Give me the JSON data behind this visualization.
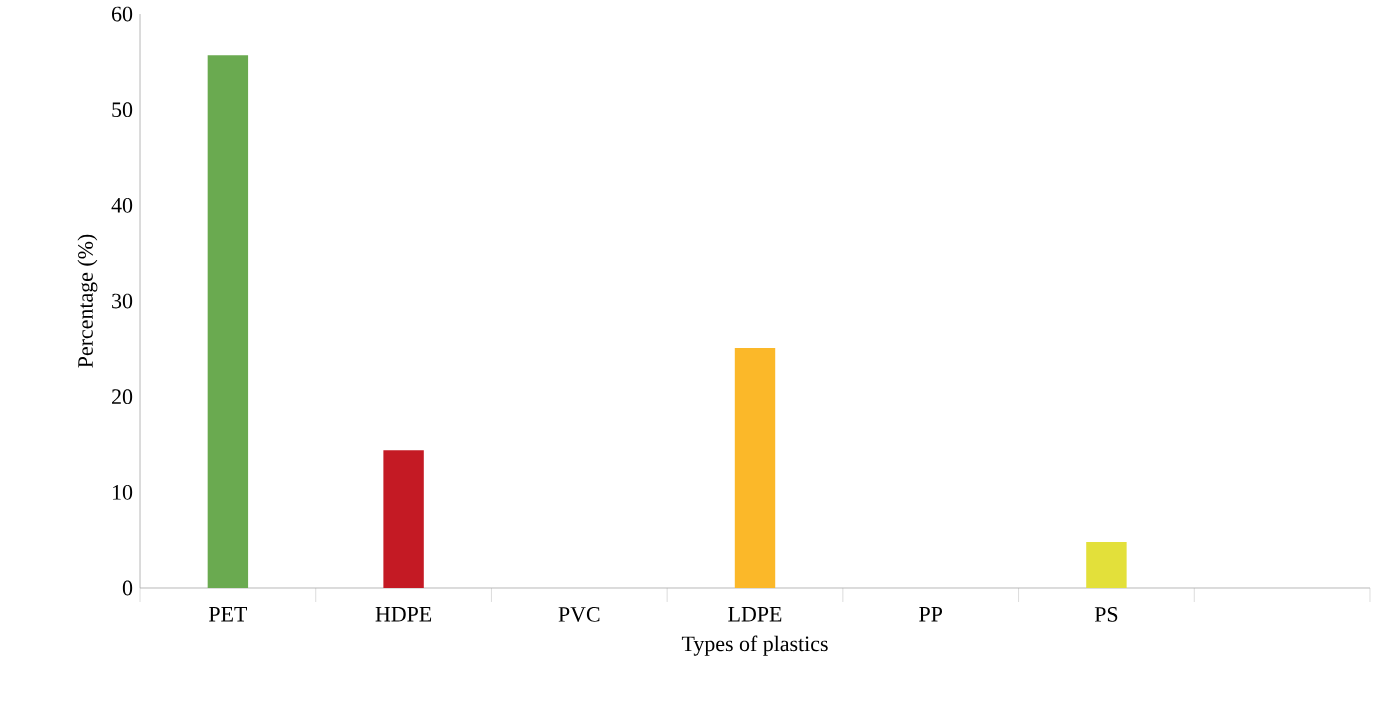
{
  "chart_data": {
    "type": "bar",
    "xlabel": "Types of plastics",
    "ylabel": "Percentage (%)",
    "categories": [
      "PET",
      "HDPE",
      "PVC",
      "LDPE",
      "PP",
      "PS",
      null
    ],
    "values": [
      55.7,
      14.4,
      0,
      25.1,
      0,
      4.8,
      null
    ],
    "colors": [
      "#6aaa50",
      "#c41a24",
      "#808080",
      "#fbb829",
      "#808080",
      "#e3e03a",
      "#808080"
    ],
    "ylim": [
      0,
      60
    ],
    "yticks": [
      0,
      10,
      20,
      30,
      40,
      50,
      60
    ]
  }
}
